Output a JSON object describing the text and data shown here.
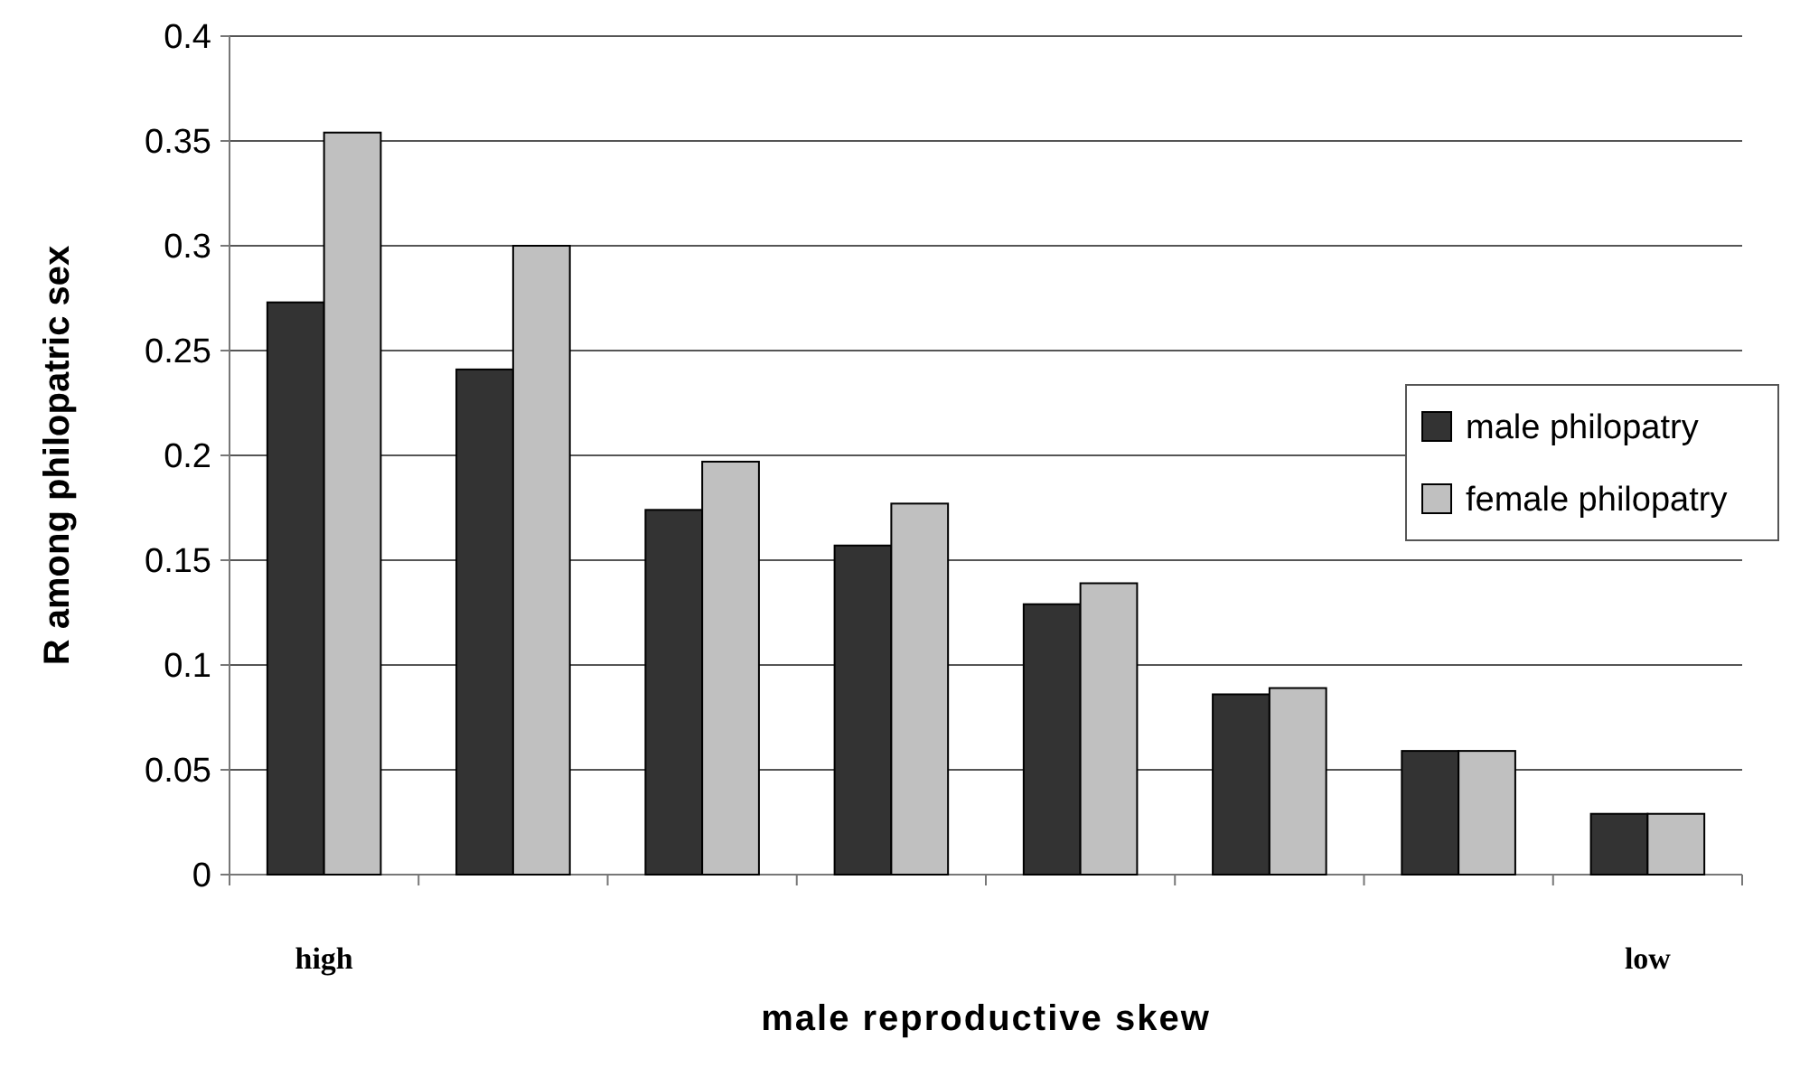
{
  "chart_data": {
    "type": "bar",
    "xlabel": "male reproductive skew",
    "ylabel": "R among philopatric sex",
    "categories": [
      "high",
      null,
      null,
      null,
      null,
      null,
      null,
      "low"
    ],
    "series": [
      {
        "name": "male philopatry",
        "color": "#333333",
        "values": [
          0.273,
          0.241,
          0.174,
          0.157,
          0.129,
          0.086,
          0.059,
          0.029
        ]
      },
      {
        "name": "female philopatry",
        "color": "#c0c0c0",
        "values": [
          0.354,
          0.3,
          0.197,
          0.177,
          0.139,
          0.089,
          0.059,
          0.029
        ]
      }
    ],
    "ylim": [
      0,
      0.4
    ],
    "yticks": [
      0,
      0.05,
      0.1,
      0.15,
      0.2,
      0.25,
      0.3,
      0.35,
      0.4
    ],
    "grid": "y",
    "legend": "right"
  }
}
